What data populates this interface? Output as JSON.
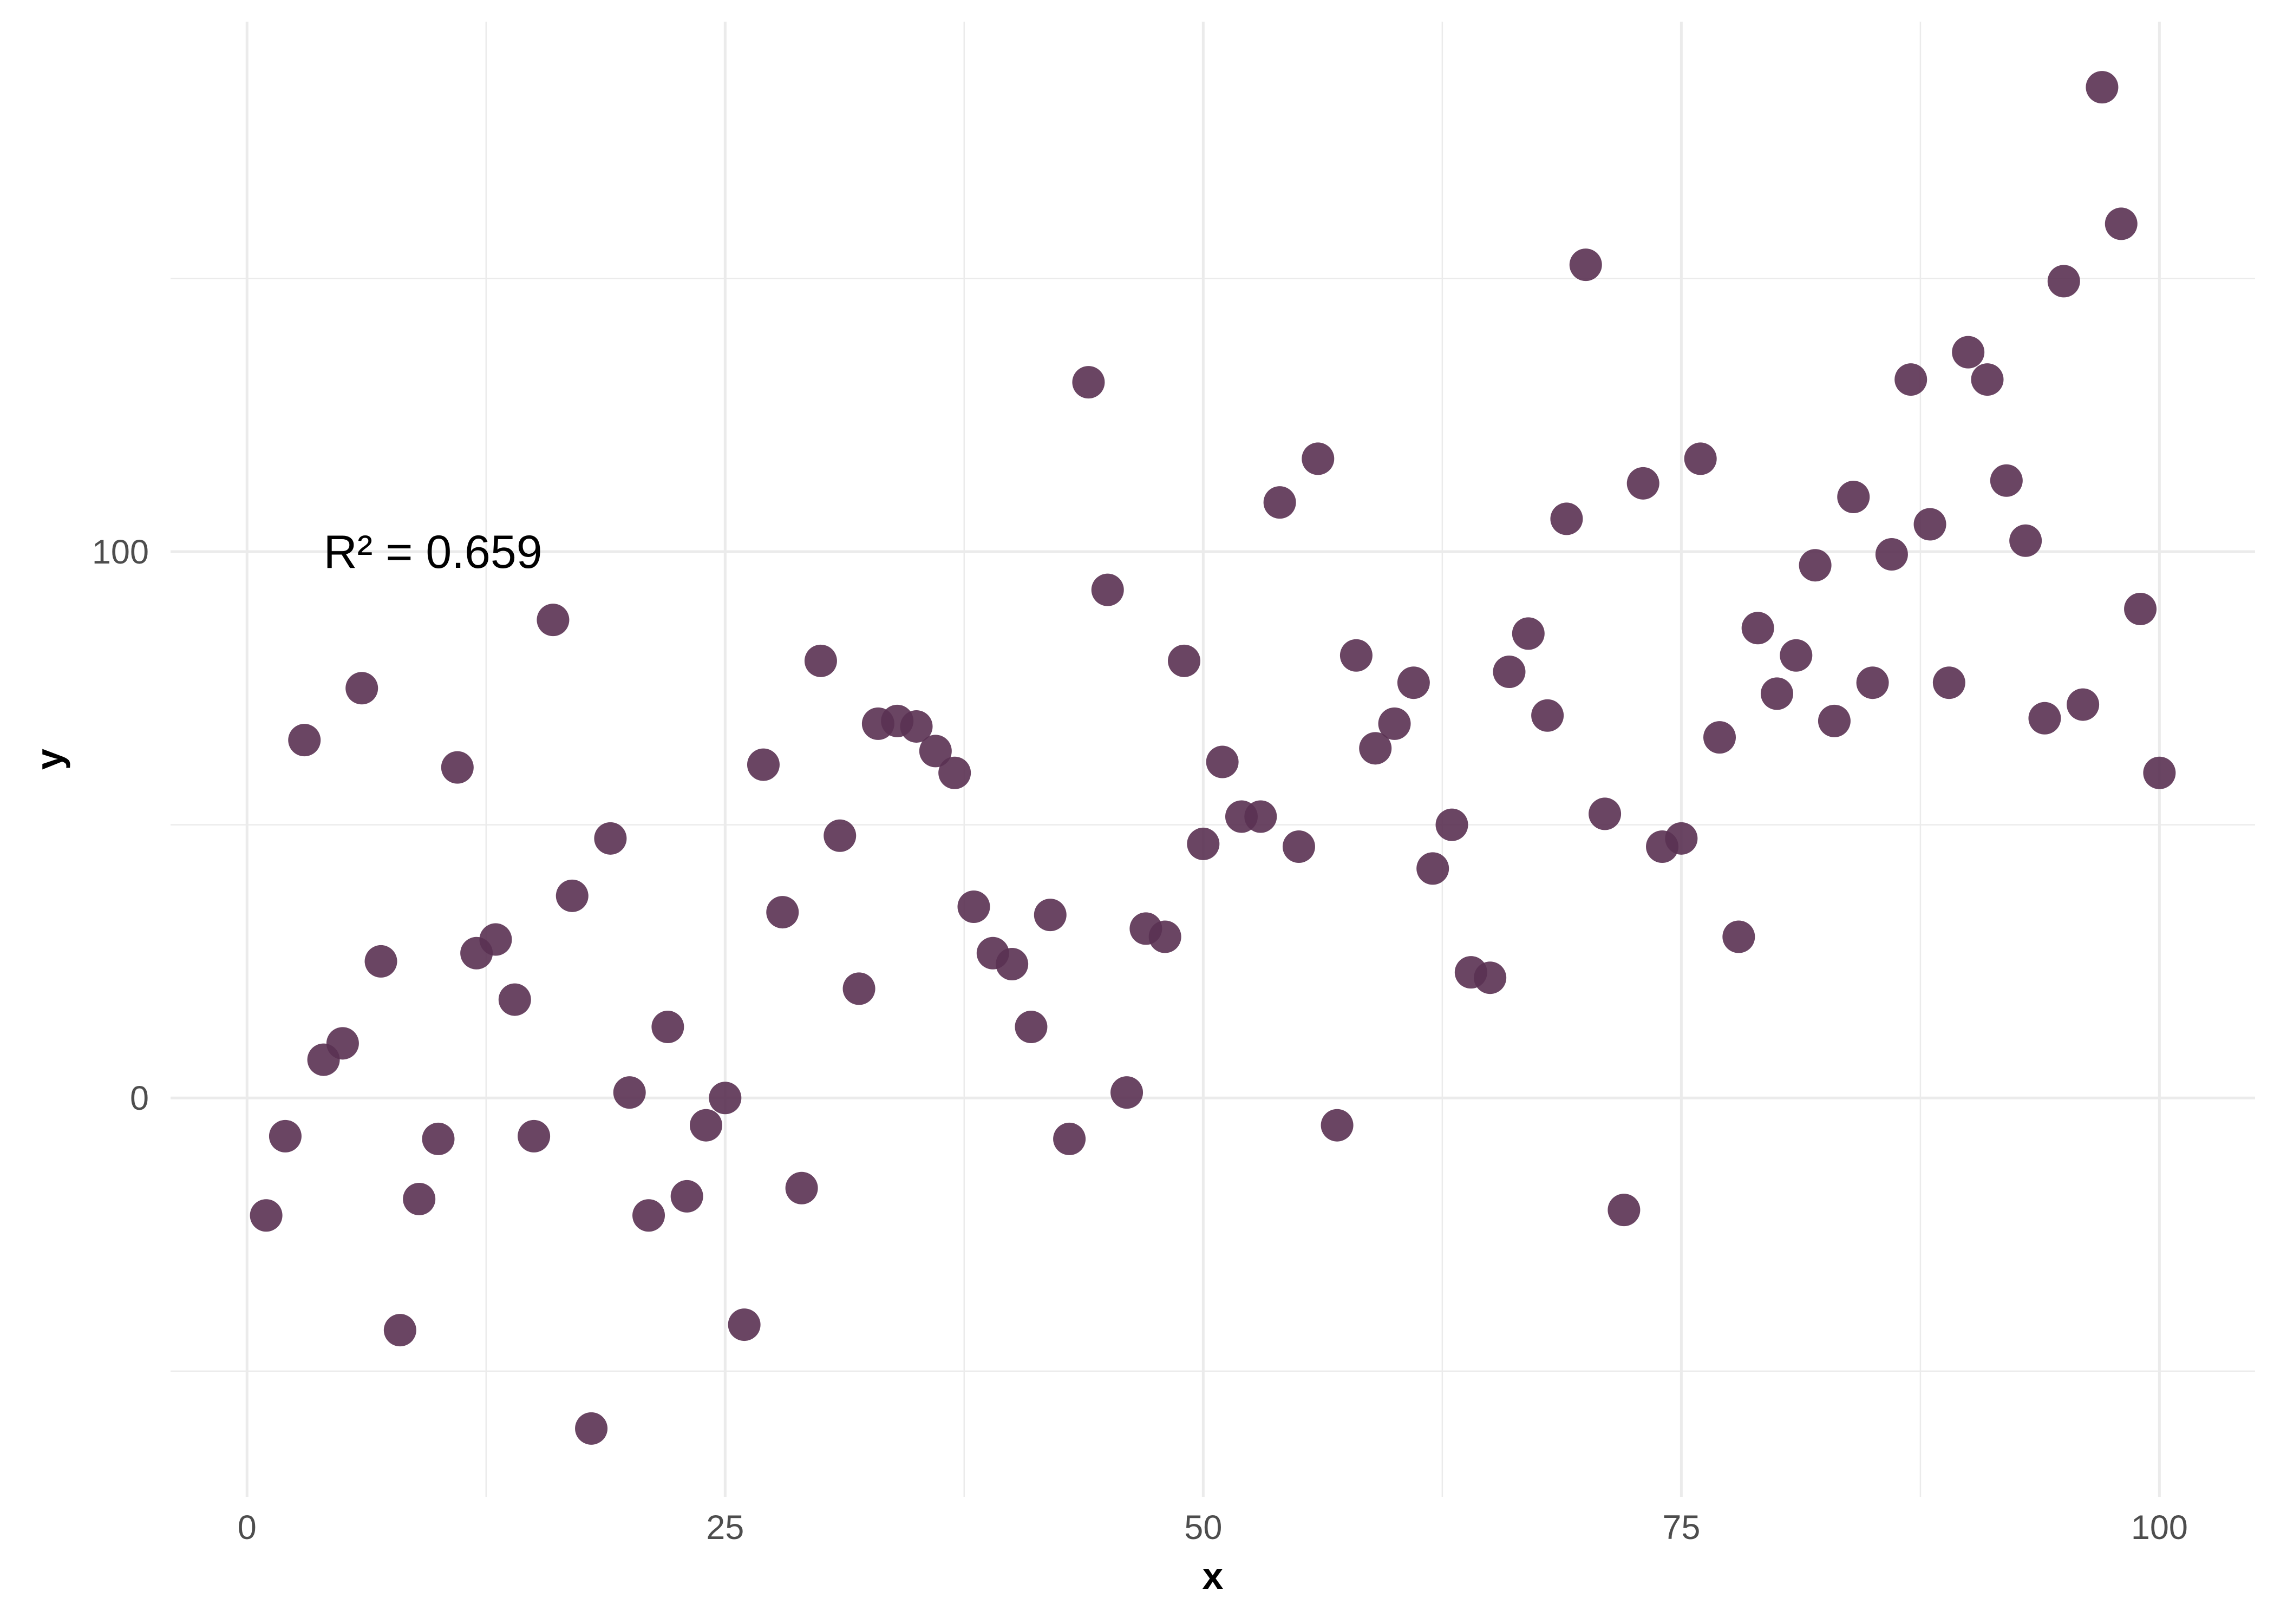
{
  "chart_data": {
    "type": "scatter",
    "xlabel": "x",
    "ylabel": "y",
    "xlim": [
      -4,
      105
    ],
    "ylim": [
      -73,
      197
    ],
    "x_ticks": [
      0,
      25,
      50,
      75,
      100
    ],
    "x_tick_labels": [
      "0",
      "25",
      "50",
      "75",
      "100"
    ],
    "y_ticks": [
      0,
      100
    ],
    "y_tick_labels": [
      "0",
      "100"
    ],
    "x_minor_ticks": [
      12.5,
      37.5,
      62.5,
      87.5
    ],
    "y_minor_ticks": [
      -50,
      50,
      150
    ],
    "grid": true,
    "point_color": "#5a3152",
    "point_opacity": 0.9,
    "annotation": {
      "text": "R² = 0.659",
      "x": 4,
      "y": 100
    },
    "series": [
      {
        "points": [
          [
            1,
            -21.5
          ],
          [
            2,
            -7
          ],
          [
            3,
            65.5
          ],
          [
            4,
            7
          ],
          [
            5,
            10
          ],
          [
            6,
            75
          ],
          [
            7,
            25
          ],
          [
            8,
            -42.5
          ],
          [
            9,
            -18.5
          ],
          [
            10,
            -7.5
          ],
          [
            11,
            60.5
          ],
          [
            12,
            26.5
          ],
          [
            13,
            29
          ],
          [
            14,
            18
          ],
          [
            15,
            -7
          ],
          [
            16,
            87.5
          ],
          [
            17,
            37
          ],
          [
            18,
            -60.5
          ],
          [
            19,
            47.5
          ],
          [
            20,
            1
          ],
          [
            21,
            -21.5
          ],
          [
            22,
            13
          ],
          [
            23,
            -18
          ],
          [
            24,
            -5
          ],
          [
            25,
            0
          ],
          [
            26,
            -41.5
          ],
          [
            27,
            61
          ],
          [
            28,
            34
          ],
          [
            29,
            -16.5
          ],
          [
            30,
            80
          ],
          [
            31,
            48
          ],
          [
            32,
            20
          ],
          [
            33,
            68.5
          ],
          [
            34,
            69
          ],
          [
            35,
            68
          ],
          [
            36,
            63.5
          ],
          [
            37,
            59.5
          ],
          [
            38,
            35
          ],
          [
            39,
            26.5
          ],
          [
            40,
            24.5
          ],
          [
            41,
            13
          ],
          [
            42,
            33.5
          ],
          [
            43,
            -7.5
          ],
          [
            44,
            131
          ],
          [
            45,
            93
          ],
          [
            46,
            1
          ],
          [
            47,
            31
          ],
          [
            48,
            29.5
          ],
          [
            49,
            80
          ],
          [
            50,
            46.5
          ],
          [
            51,
            61.5
          ],
          [
            52,
            51.5
          ],
          [
            53,
            51.5
          ],
          [
            54,
            109
          ],
          [
            55,
            46
          ],
          [
            56,
            117
          ],
          [
            57,
            -5
          ],
          [
            58,
            81
          ],
          [
            59,
            64
          ],
          [
            60,
            68.5
          ],
          [
            61,
            76
          ],
          [
            62,
            42
          ],
          [
            63,
            50
          ],
          [
            64,
            23
          ],
          [
            65,
            22
          ],
          [
            66,
            78
          ],
          [
            67,
            85
          ],
          [
            68,
            70
          ],
          [
            69,
            106
          ],
          [
            70,
            152.5
          ],
          [
            71,
            52
          ],
          [
            72,
            -20.5
          ],
          [
            73,
            112.5
          ],
          [
            74,
            46
          ],
          [
            75,
            47.5
          ],
          [
            76,
            117
          ],
          [
            77,
            66
          ],
          [
            78,
            29.5
          ],
          [
            79,
            86
          ],
          [
            80,
            74
          ],
          [
            81,
            81
          ],
          [
            82,
            97.5
          ],
          [
            83,
            69
          ],
          [
            84,
            110
          ],
          [
            85,
            76
          ],
          [
            86,
            99.5
          ],
          [
            87,
            131.5
          ],
          [
            88,
            105
          ],
          [
            89,
            76
          ],
          [
            90,
            136.5
          ],
          [
            91,
            131.5
          ],
          [
            92,
            113
          ],
          [
            93,
            102
          ],
          [
            94,
            69.5
          ],
          [
            95,
            149.5
          ],
          [
            96,
            72
          ],
          [
            97,
            185
          ],
          [
            98,
            160
          ],
          [
            99,
            89.5
          ],
          [
            100,
            59.5
          ]
        ]
      }
    ]
  }
}
